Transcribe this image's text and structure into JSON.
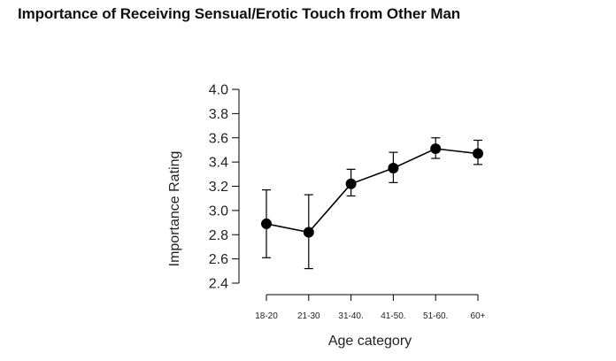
{
  "chart_data": {
    "type": "line",
    "title": "Importance of Receiving Sensual/Erotic Touch from Other Man",
    "xlabel": "Age category",
    "ylabel": "Importance Rating",
    "categories": [
      "18-20",
      "21-30",
      "31-40.",
      "41-50.",
      "51-60.",
      "60+"
    ],
    "series": [
      {
        "values": [
          2.89,
          2.82,
          3.22,
          3.35,
          3.51,
          3.47
        ],
        "error_low": [
          2.61,
          2.52,
          3.12,
          3.23,
          3.43,
          3.38
        ],
        "error_high": [
          3.17,
          3.13,
          3.34,
          3.48,
          3.6,
          3.58
        ]
      }
    ],
    "ylim": [
      2.4,
      4.0
    ],
    "yticks": [
      "2.4",
      "2.6",
      "2.8",
      "3.0",
      "3.2",
      "3.4",
      "3.6",
      "3.8",
      "4.0"
    ],
    "grid": false,
    "legend": "none",
    "colors": {
      "line": "#000000",
      "marker": "#000000"
    }
  }
}
